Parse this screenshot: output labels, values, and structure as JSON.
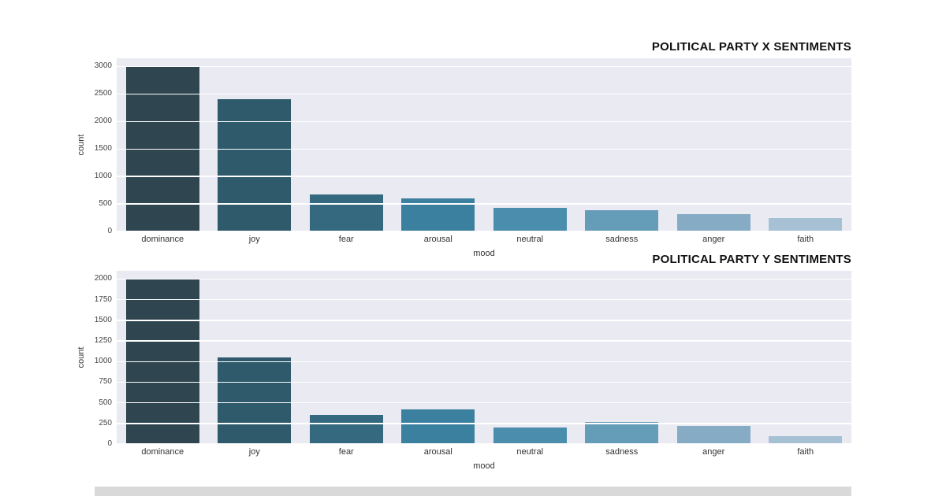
{
  "page": {
    "background": "#ffffff"
  },
  "chart_data": [
    {
      "type": "bar",
      "title": "POLITICAL PARTY X SENTIMENTS",
      "xlabel": "mood",
      "ylabel": "count",
      "categories": [
        "dominance",
        "joy",
        "fear",
        "arousal",
        "neutral",
        "sadness",
        "anger",
        "faith"
      ],
      "values": [
        3000,
        2400,
        670,
        600,
        430,
        390,
        320,
        250
      ],
      "ylim": [
        0,
        3150
      ],
      "yticks": [
        0,
        500,
        1000,
        1500,
        2000,
        2500,
        3000
      ],
      "bar_colors": [
        "#2f4550",
        "#2e5a6c",
        "#35697f",
        "#3c80a0",
        "#4b8dac",
        "#659cb8",
        "#86abc5",
        "#a6c0d4"
      ],
      "plot_bg": "#eaeaf2",
      "grid_color": "#ffffff",
      "grid": "on",
      "legend": "none"
    },
    {
      "type": "bar",
      "title": "POLITICAL PARTY Y SENTIMENTS",
      "xlabel": "mood",
      "ylabel": "count",
      "categories": [
        "dominance",
        "joy",
        "fear",
        "arousal",
        "neutral",
        "sadness",
        "anger",
        "faith"
      ],
      "values": [
        2000,
        1050,
        350,
        420,
        200,
        270,
        220,
        100
      ],
      "ylim": [
        0,
        2100
      ],
      "yticks": [
        0,
        250,
        500,
        750,
        1000,
        1250,
        1500,
        1750,
        2000
      ],
      "bar_colors": [
        "#2f4550",
        "#2e5a6c",
        "#35697f",
        "#3c80a0",
        "#4b8dac",
        "#659cb8",
        "#86abc5",
        "#a6c0d4"
      ],
      "plot_bg": "#eaeaf2",
      "grid_color": "#ffffff",
      "grid": "on",
      "legend": "none"
    }
  ]
}
